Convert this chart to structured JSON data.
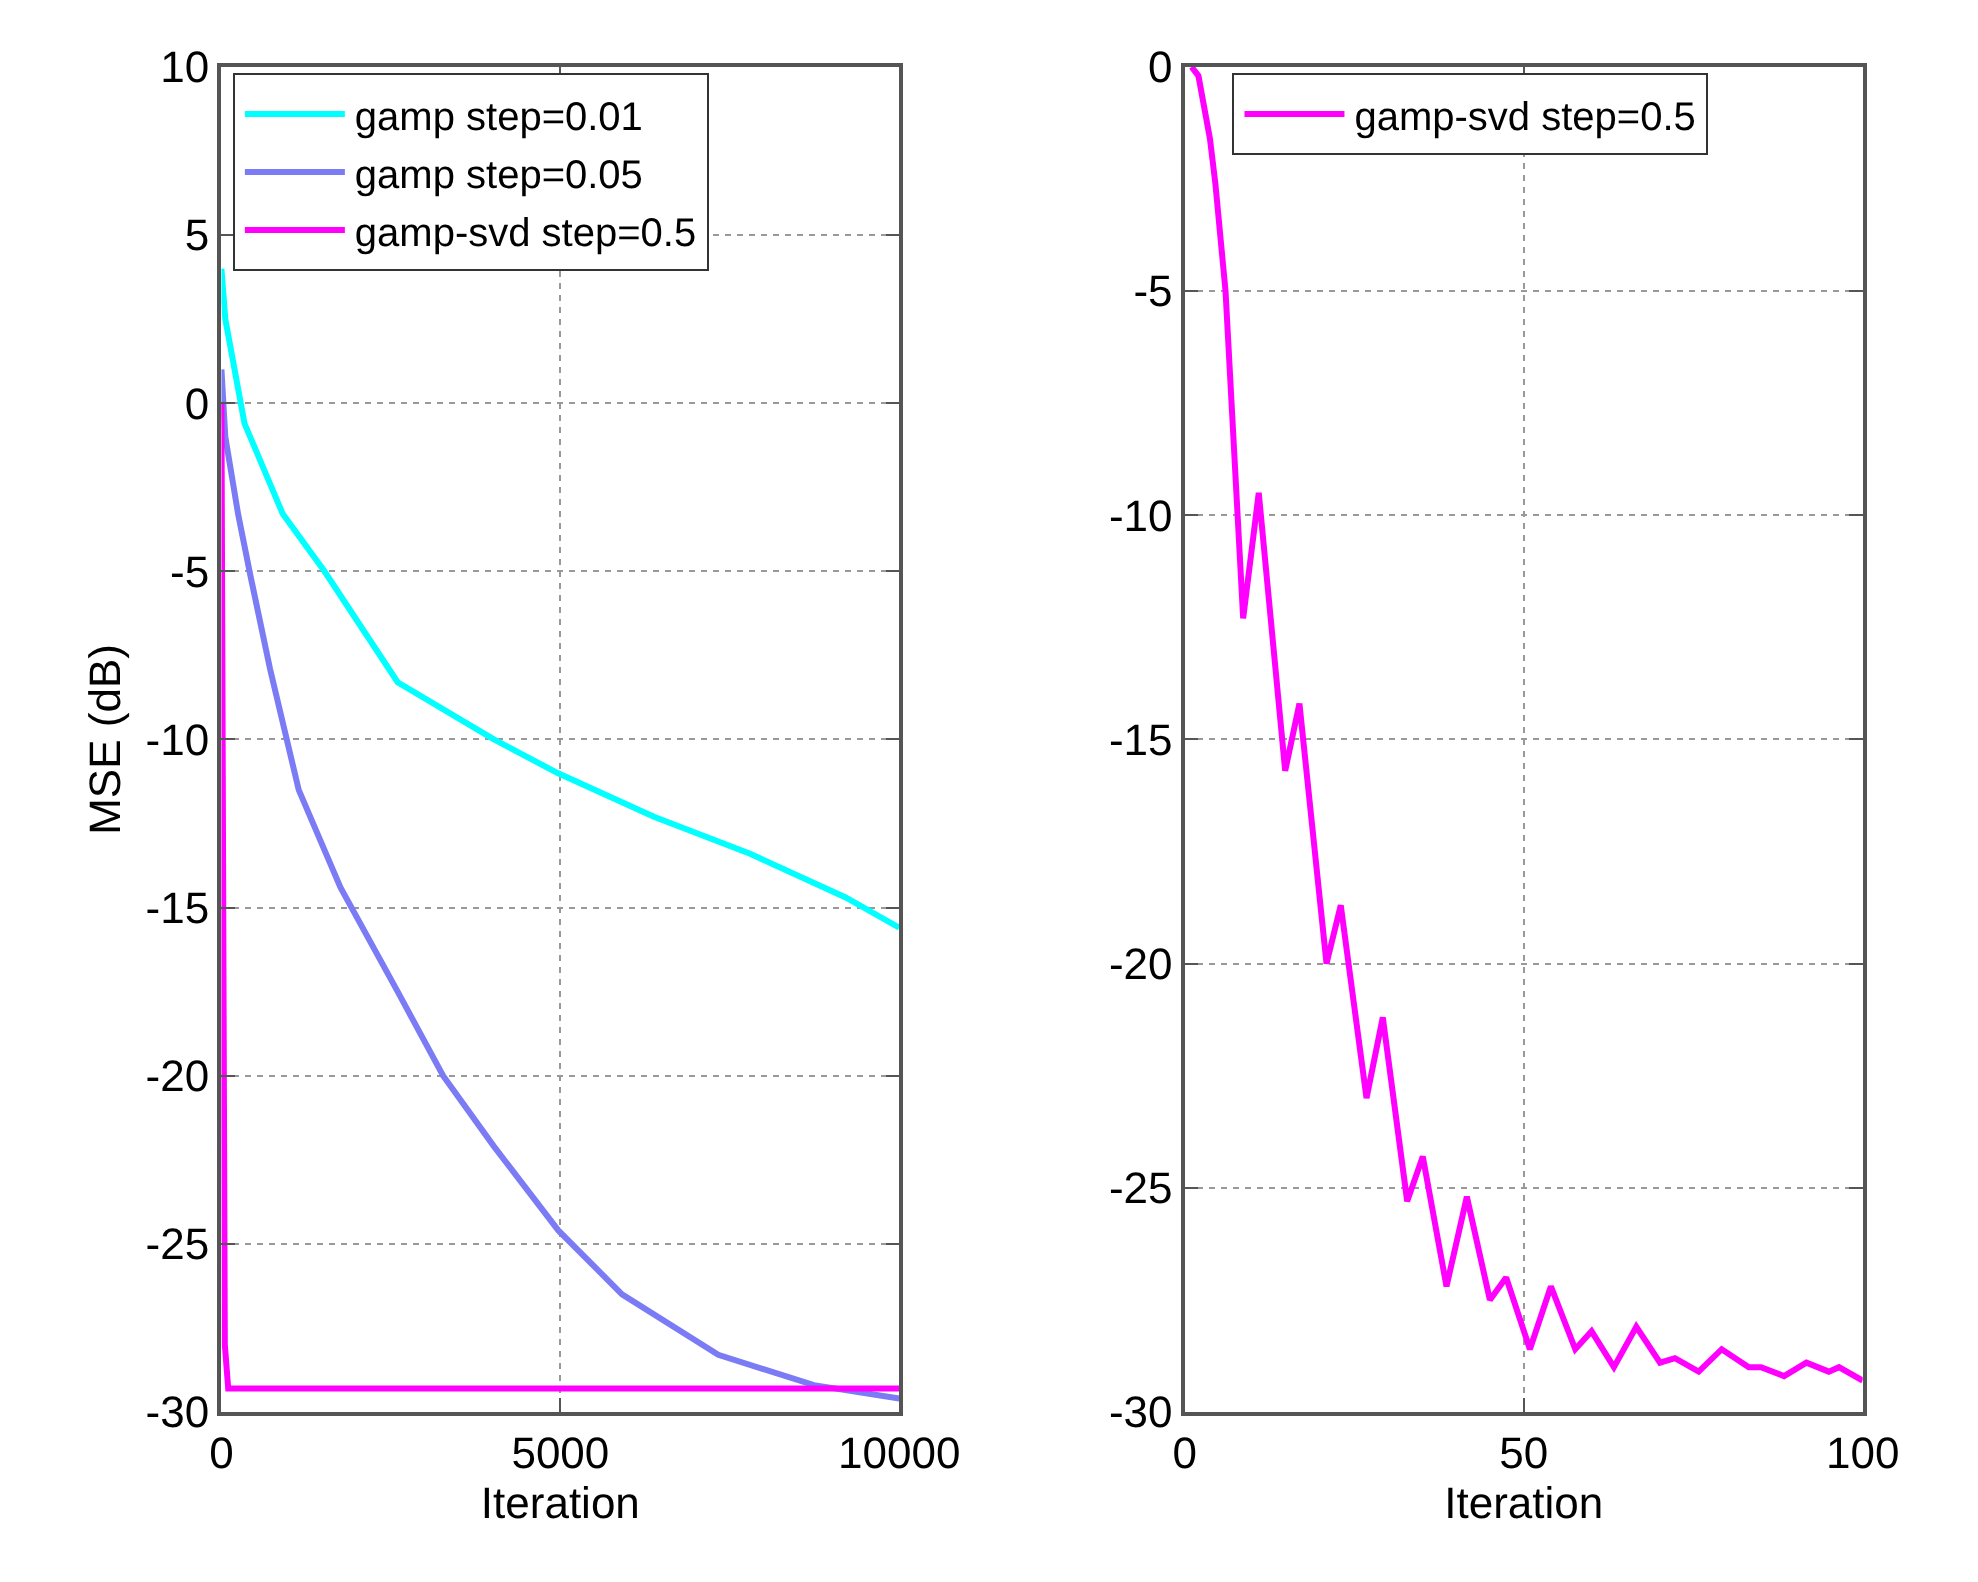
{
  "chart_data": [
    {
      "type": "line",
      "xlabel": "Iteration",
      "ylabel": "MSE (dB)",
      "xlim": [
        0,
        10000
      ],
      "ylim": [
        -30,
        10
      ],
      "xticks": [
        0,
        5000,
        10000
      ],
      "yticks": [
        -30,
        -25,
        -20,
        -15,
        -10,
        -5,
        0,
        5,
        10
      ],
      "grid": true,
      "legend": "top left",
      "series": [
        {
          "name": "gamp step=0.01",
          "color": "#00ffff",
          "x": [
            0,
            57,
            340,
            906,
            1520,
            2600,
            4020,
            4960,
            6380,
            7800,
            9210,
            10000
          ],
          "values": [
            4,
            2.5,
            -0.6,
            -3.3,
            -5,
            -8.3,
            -10,
            -11,
            -12.3,
            -13.4,
            -14.7,
            -15.6
          ]
        },
        {
          "name": "gamp step=0.05",
          "color": "#7b7bf5",
          "x": [
            0,
            57,
            246,
            435,
            717,
            1140,
            1756,
            2600,
            3270,
            4020,
            4970,
            5910,
            7330,
            8740,
            10000
          ],
          "values": [
            1,
            -1,
            -3.3,
            -5.2,
            -7.9,
            -11.5,
            -14.4,
            -17.5,
            -20,
            -22.1,
            -24.6,
            -26.5,
            -28.3,
            -29.2,
            -29.6
          ]
        },
        {
          "name": "gamp-svd step=0.5",
          "color": "#ff00ff",
          "x": [
            0,
            50,
            100,
            10000
          ],
          "values": [
            0,
            -28,
            -29.3,
            -29.3
          ]
        }
      ]
    },
    {
      "type": "line",
      "xlabel": "Iteration",
      "xlim": [
        0,
        100
      ],
      "ylim": [
        -30,
        0
      ],
      "xticks": [
        0,
        50,
        100
      ],
      "yticks": [
        -30,
        -25,
        -20,
        -15,
        -10,
        -5,
        0
      ],
      "grid": true,
      "legend": "top left",
      "series": [
        {
          "name": "gamp-svd step=0.5",
          "color": "#ff00ff",
          "x": [
            1,
            2,
            3.7,
            4.5,
            6,
            8.6,
            10.9,
            14.8,
            16.9,
            20.9,
            23,
            26.8,
            29.2,
            32.8,
            35.1,
            38.6,
            41.6,
            45,
            47.4,
            50.9,
            54,
            57.6,
            60,
            63.3,
            66.6,
            70.1,
            72.3,
            75.8,
            79.2,
            83.2,
            85,
            88.4,
            91.7,
            95,
            96.5,
            100
          ],
          "values": [
            0,
            -0.2,
            -1.6,
            -2.6,
            -5,
            -12.3,
            -9.5,
            -15.7,
            -14.2,
            -20,
            -18.7,
            -23,
            -21.2,
            -25.3,
            -24.3,
            -27.2,
            -25.2,
            -27.5,
            -27,
            -28.6,
            -27.2,
            -28.6,
            -28.2,
            -29,
            -28.1,
            -28.9,
            -28.8,
            -29.1,
            -28.6,
            -29,
            -29,
            -29.2,
            -28.9,
            -29.1,
            -29,
            -29.3
          ]
        }
      ]
    }
  ]
}
